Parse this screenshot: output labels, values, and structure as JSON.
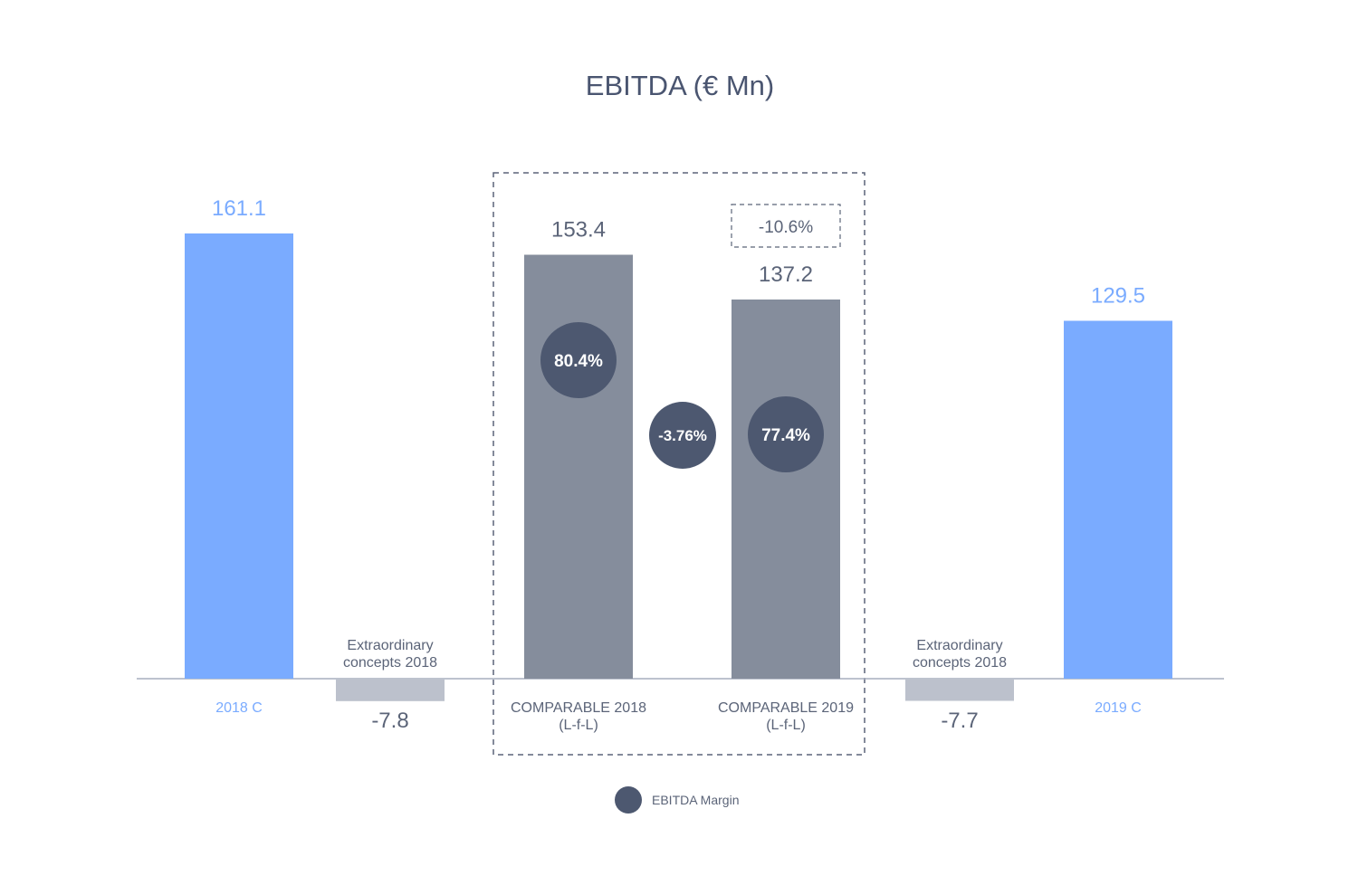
{
  "chart_data": {
    "type": "bar",
    "title": "EBITDA (€ Mn)",
    "categories": [
      {
        "lines": [
          "2018 C"
        ]
      },
      {
        "lines": [
          "Extraordinary",
          "concepts  2018"
        ]
      },
      {
        "lines": [
          "COMPARABLE 2018",
          "(L-f-L)"
        ]
      },
      {
        "lines": [
          "COMPARABLE 2019",
          "(L-f-L)"
        ]
      },
      {
        "lines": [
          "Extraordinary",
          "concepts  2018"
        ]
      },
      {
        "lines": [
          "2019 C"
        ]
      }
    ],
    "values": [
      161.1,
      -7.8,
      153.4,
      137.2,
      -7.7,
      129.5
    ],
    "value_labels": [
      "161.1",
      "-7.8",
      "153.4",
      "137.2",
      "-7.7",
      "129.5"
    ],
    "ylim": [
      -8,
      170
    ],
    "margins": [
      {
        "category_index": 2,
        "label": "80.4%"
      },
      {
        "category_index": 3,
        "label": "77.4%"
      }
    ],
    "margin_change": "-3.76%",
    "comparable_change": "-10.6%",
    "legend": [
      {
        "label": "EBITDA Margin",
        "color": "#4d5870"
      }
    ],
    "colors": {
      "reported": "#7aabff",
      "extraordinary": "#bcc1cc",
      "comparable": "#858d9c",
      "margin_bubble": "#4d5870",
      "axis": "#a7adbd",
      "text_dark": "#5b6478",
      "dashed_box": "#5b6478"
    }
  }
}
